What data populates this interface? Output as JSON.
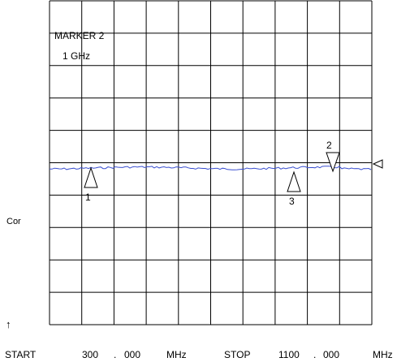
{
  "display": {
    "marker_title": "MARKER 2",
    "marker_value": "1 GHz",
    "left_label": "Cor",
    "up_arrow": "↑",
    "trace_color": "#3a4fd0",
    "grid_color": "#000000"
  },
  "markers": [
    {
      "id": "1",
      "shape": "up-triangle"
    },
    {
      "id": "2",
      "shape": "down-triangle"
    },
    {
      "id": "3",
      "shape": "up-triangle"
    }
  ],
  "reference_marker": {
    "icon": "left-triangle-icon"
  },
  "axis": {
    "start_label": "START",
    "start_whole": "300",
    "start_dot": ".",
    "start_frac": "000",
    "start_unit": "MHz",
    "stop_label": "STOP",
    "stop_whole": "1100",
    "stop_dot": ".",
    "stop_frac": "000",
    "stop_unit": "MHz"
  }
}
